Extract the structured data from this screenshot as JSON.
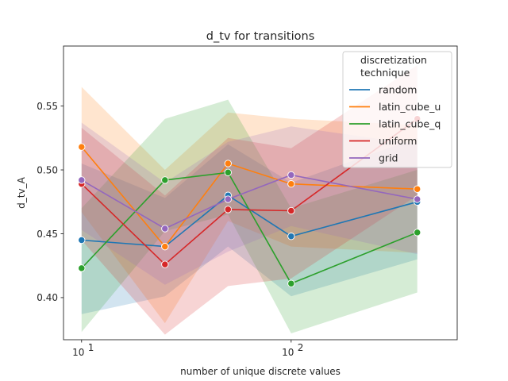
{
  "chart_data": {
    "type": "line",
    "title": "d_tv for transitions",
    "xlabel": "number of unique discrete values",
    "ylabel": "d_tv_A",
    "xscale": "log",
    "xlim": [
      8.2,
      620
    ],
    "ylim": [
      0.367,
      0.597
    ],
    "x": [
      10,
      25,
      50,
      100,
      400
    ],
    "yticks": [
      0.4,
      0.45,
      0.5,
      0.55
    ],
    "ytick_labels": [
      "0.40",
      "0.45",
      "0.50",
      "0.55"
    ],
    "xticks": [
      {
        "value": 10,
        "base": "10",
        "exp": "1"
      },
      {
        "value": 100,
        "base": "10",
        "exp": "2"
      }
    ],
    "grid": false,
    "legend": {
      "title_lines": [
        "discretization",
        "technique"
      ],
      "placement": "top-right"
    },
    "series": [
      {
        "name": "random",
        "color": "#1f77b4",
        "values": [
          0.445,
          0.44,
          0.48,
          0.448,
          0.475
        ],
        "lower": [
          0.387,
          0.401,
          0.44,
          0.401,
          0.43
        ],
        "upper": [
          0.505,
          0.478,
          0.52,
          0.49,
          0.525
        ]
      },
      {
        "name": "latin_cube_u",
        "color": "#ff7f0e",
        "values": [
          0.518,
          0.44,
          0.505,
          0.489,
          0.485
        ],
        "lower": [
          0.467,
          0.38,
          0.46,
          0.44,
          0.435
        ],
        "upper": [
          0.565,
          0.5,
          0.545,
          0.54,
          0.535
        ]
      },
      {
        "name": "latin_cube_q",
        "color": "#2ca02c",
        "values": [
          0.423,
          0.492,
          0.498,
          0.411,
          0.451
        ],
        "lower": [
          0.373,
          0.452,
          0.465,
          0.372,
          0.404
        ],
        "upper": [
          0.47,
          0.54,
          0.555,
          0.47,
          0.5
        ]
      },
      {
        "name": "uniform",
        "color": "#d62728",
        "values": [
          0.489,
          0.426,
          0.469,
          0.468,
          0.54
        ],
        "lower": [
          0.445,
          0.371,
          0.409,
          0.415,
          0.48
        ],
        "upper": [
          0.533,
          0.48,
          0.525,
          0.517,
          0.582
        ]
      },
      {
        "name": "grid",
        "color": "#9467bd",
        "values": [
          0.492,
          0.454,
          0.477,
          0.496,
          0.477
        ],
        "lower": [
          0.453,
          0.41,
          0.436,
          0.456,
          0.434
        ],
        "upper": [
          0.537,
          0.49,
          0.522,
          0.534,
          0.52
        ]
      }
    ]
  }
}
